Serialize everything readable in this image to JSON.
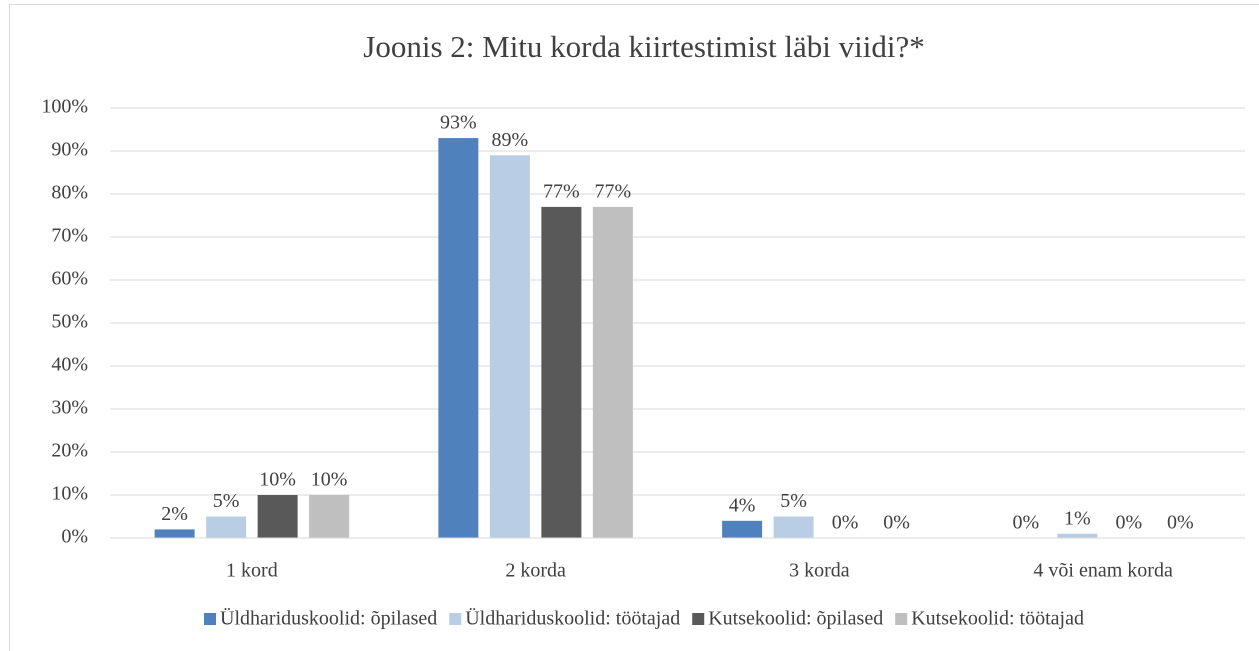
{
  "chart_data": {
    "type": "bar",
    "title": "Joonis 2: Mitu korda kiirtestimist läbi viidi?*",
    "categories": [
      "1 kord",
      "2 korda",
      "3 korda",
      "4 või enam korda"
    ],
    "series": [
      {
        "name": "Üldhariduskoolid: õpilased",
        "color": "#4f81bd",
        "values": [
          2,
          93,
          4,
          0
        ],
        "value_labels": [
          "2%",
          "93%",
          "4%",
          "0%"
        ]
      },
      {
        "name": "Üldhariduskoolid: töötajad",
        "color": "#b9cde5",
        "values": [
          5,
          89,
          5,
          1
        ],
        "value_labels": [
          "5%",
          "89%",
          "5%",
          "1%"
        ]
      },
      {
        "name": "Kutsekoolid: õpilased",
        "color": "#595959",
        "values": [
          10,
          77,
          0,
          0
        ],
        "value_labels": [
          "10%",
          "77%",
          "0%",
          "0%"
        ]
      },
      {
        "name": "Kutsekoolid: töötajad",
        "color": "#bfbfbf",
        "values": [
          10,
          77,
          0,
          0
        ],
        "value_labels": [
          "10%",
          "77%",
          "0%",
          "0%"
        ]
      }
    ],
    "ylim": [
      0,
      100
    ],
    "yticks": [
      {
        "value": 0,
        "label": "0%"
      },
      {
        "value": 10,
        "label": "10%"
      },
      {
        "value": 20,
        "label": "20%"
      },
      {
        "value": 30,
        "label": "30%"
      },
      {
        "value": 40,
        "label": "40%"
      },
      {
        "value": 50,
        "label": "50%"
      },
      {
        "value": 60,
        "label": "60%"
      },
      {
        "value": 70,
        "label": "70%"
      },
      {
        "value": 80,
        "label": "80%"
      },
      {
        "value": 90,
        "label": "90%"
      },
      {
        "value": 100,
        "label": "100%"
      }
    ],
    "grid": true,
    "legend": "bottom"
  }
}
